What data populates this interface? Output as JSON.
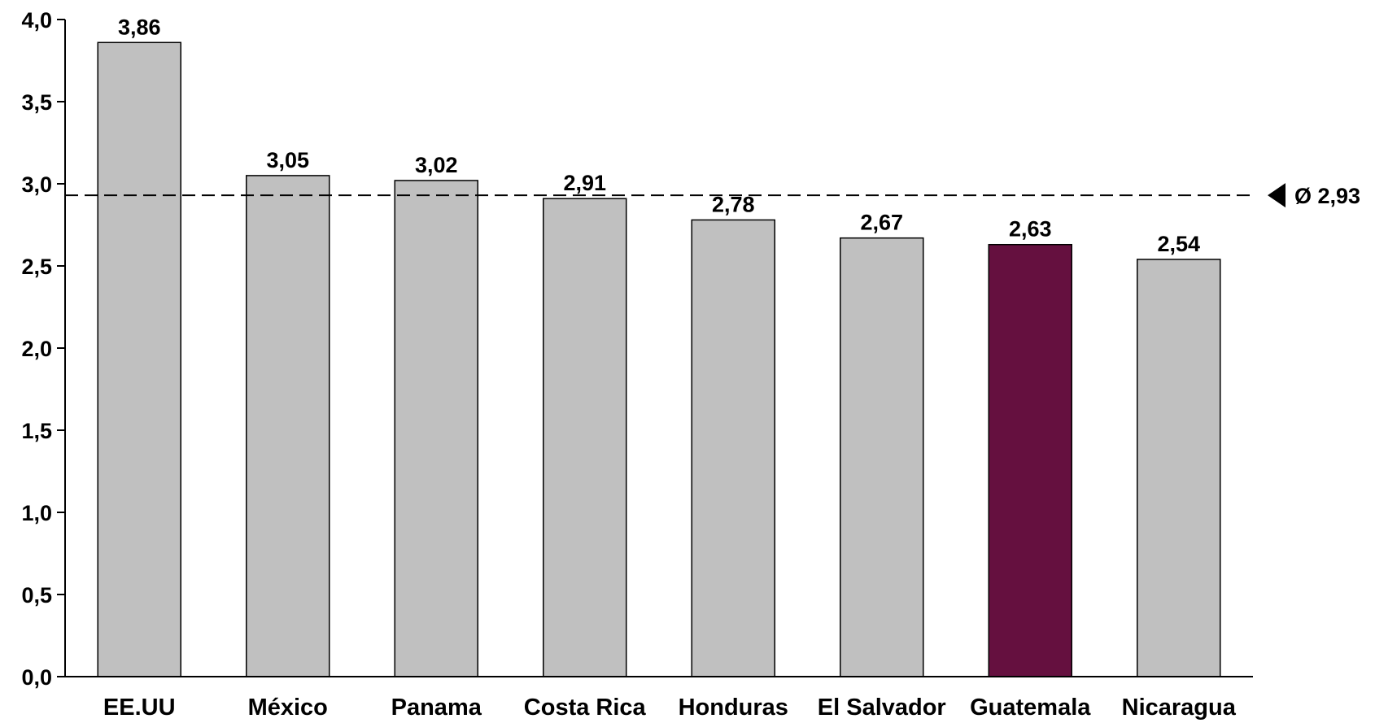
{
  "chart_data": {
    "type": "bar",
    "categories": [
      "EE.UU",
      "México",
      "Panama",
      "Costa Rica",
      "Honduras",
      "El Salvador",
      "Guatemala",
      "Nicaragua"
    ],
    "values": [
      3.86,
      3.05,
      3.02,
      2.91,
      2.78,
      2.67,
      2.63,
      2.54
    ],
    "data_labels": [
      "3,86",
      "3,05",
      "3,02",
      "2,91",
      "2,78",
      "2,67",
      "2,63",
      "2,54"
    ],
    "highlight_category": "Guatemala",
    "colors": {
      "bar": "#c0c0c0",
      "highlight": "#65103f",
      "stroke": "#000000"
    },
    "ylim": [
      0,
      4
    ],
    "yticks": [
      0,
      0.5,
      1,
      1.5,
      2,
      2.5,
      3,
      3.5,
      4
    ],
    "ytick_labels": [
      "0,0",
      "0,5",
      "1,0",
      "1,5",
      "2,0",
      "2,5",
      "3,0",
      "3,5",
      "4,0"
    ],
    "average": {
      "value": 2.93,
      "label": "Ø 2,93",
      "style": "dashed",
      "marker": "left-pointing-triangle"
    },
    "title": "",
    "xlabel": "",
    "ylabel": "",
    "grid": false,
    "legend": "none"
  }
}
